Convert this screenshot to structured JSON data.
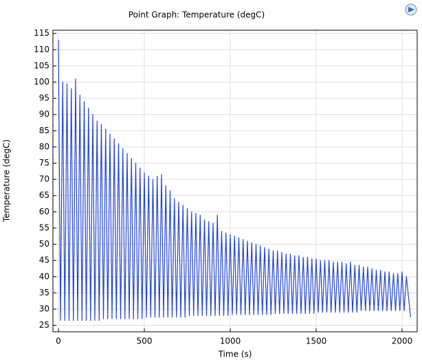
{
  "chart_data": {
    "type": "line",
    "title": "Point Graph: Temperature (degC)",
    "x_label": "Time (s)",
    "y_label": "Temperature (degC)",
    "x": [
      0,
      12,
      25,
      37,
      50,
      62,
      75,
      87,
      100,
      112,
      125,
      137,
      150,
      162,
      175,
      187,
      200,
      212,
      225,
      237,
      250,
      262,
      275,
      287,
      300,
      312,
      325,
      337,
      350,
      362,
      375,
      387,
      400,
      412,
      425,
      437,
      450,
      462,
      475,
      487,
      500,
      512,
      525,
      537,
      550,
      562,
      575,
      587,
      600,
      612,
      625,
      637,
      650,
      662,
      675,
      687,
      700,
      712,
      725,
      737,
      750,
      762,
      775,
      787,
      800,
      812,
      825,
      837,
      850,
      862,
      875,
      887,
      900,
      912,
      925,
      937,
      950,
      962,
      975,
      987,
      1000,
      1012,
      1025,
      1037,
      1050,
      1062,
      1075,
      1087,
      1100,
      1112,
      1125,
      1137,
      1150,
      1162,
      1175,
      1187,
      1200,
      1212,
      1225,
      1237,
      1250,
      1262,
      1275,
      1287,
      1300,
      1312,
      1325,
      1337,
      1350,
      1362,
      1375,
      1387,
      1400,
      1412,
      1425,
      1437,
      1450,
      1462,
      1475,
      1487,
      1500,
      1512,
      1525,
      1537,
      1550,
      1562,
      1575,
      1587,
      1600,
      1612,
      1625,
      1637,
      1650,
      1662,
      1675,
      1687,
      1700,
      1712,
      1725,
      1737,
      1750,
      1762,
      1775,
      1787,
      1800,
      1812,
      1825,
      1837,
      1850,
      1862,
      1875,
      1887,
      1900,
      1912,
      1925,
      1937,
      1950,
      1962,
      1975,
      1987,
      2000,
      2012,
      2025,
      2050
    ],
    "series": [
      {
        "name": "Temperature",
        "color": "#2244d4",
        "values": [
          113,
          26.5,
          100,
          26.5,
          99.5,
          26.5,
          98,
          26.5,
          101,
          26.5,
          96,
          26.5,
          94,
          26.5,
          92,
          26.5,
          90,
          26.5,
          88,
          26.5,
          87,
          27,
          85.5,
          27,
          84,
          27,
          82.5,
          27,
          81,
          27,
          79.5,
          27,
          78,
          27,
          76.5,
          27,
          75,
          27,
          73.5,
          27,
          72,
          27.5,
          71,
          27.5,
          70,
          27.5,
          71,
          27.5,
          71.5,
          27.5,
          68,
          27.5,
          66.5,
          27.5,
          64,
          27.5,
          63,
          27.5,
          62,
          27.5,
          61,
          28,
          60,
          28,
          59.5,
          28,
          59,
          28,
          57.5,
          28,
          57,
          28,
          56.5,
          28,
          59,
          28,
          54,
          28,
          53.5,
          28,
          53,
          28.3,
          52.5,
          28.3,
          52,
          28.3,
          51.5,
          28.3,
          51,
          28.3,
          50.5,
          28.3,
          50,
          28.3,
          49.5,
          28.3,
          49,
          28.3,
          48.5,
          28.3,
          48,
          28.6,
          48,
          28.6,
          47.5,
          28.6,
          47,
          28.6,
          47,
          28.6,
          46.5,
          28.6,
          46.5,
          28.6,
          46,
          28.6,
          46,
          28.6,
          45.5,
          28.6,
          45.5,
          29,
          45,
          29,
          45,
          29,
          45,
          29,
          44.5,
          29,
          44.5,
          29,
          44.5,
          29,
          44,
          29,
          44.5,
          29,
          43.5,
          29,
          43.5,
          29.5,
          43,
          29.5,
          43,
          29.5,
          42.5,
          29.5,
          42,
          29.5,
          42,
          29.5,
          41.5,
          29.5,
          41.5,
          29.5,
          41,
          29.5,
          41,
          29.5,
          41.5,
          29.5,
          40,
          27.5
        ]
      }
    ],
    "xlim": [
      -32,
      2088
    ],
    "ylim": [
      23,
      116
    ],
    "xticks": [
      0,
      500,
      1000,
      1500,
      2000
    ],
    "yticks": [
      25,
      30,
      35,
      40,
      45,
      50,
      55,
      60,
      65,
      70,
      75,
      80,
      85,
      90,
      95,
      100,
      105,
      110,
      115
    ],
    "grid": true
  }
}
